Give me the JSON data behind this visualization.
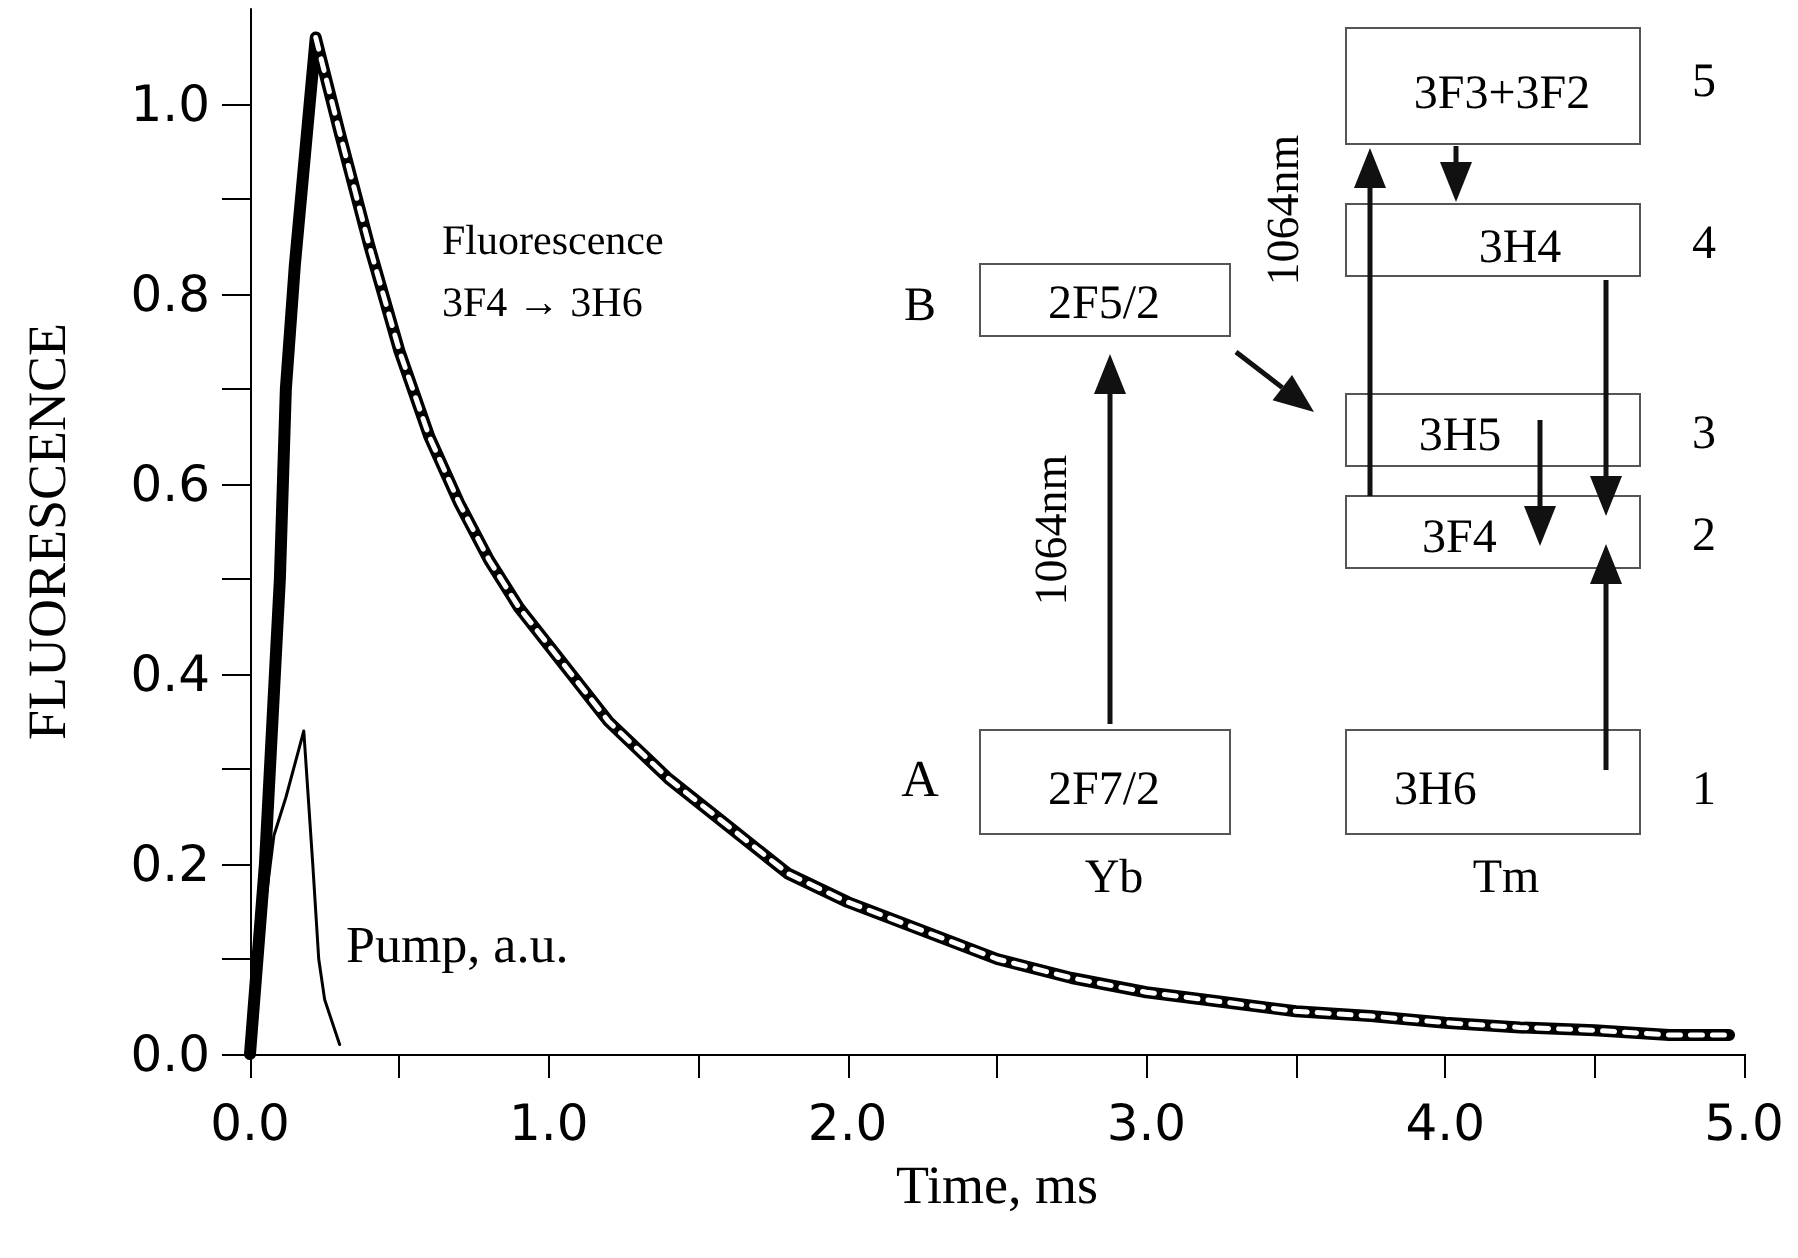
{
  "chart_data": {
    "type": "line",
    "xlabel": "Time, ms",
    "ylabel": "FLUORESCENCE",
    "xlim": [
      0,
      5
    ],
    "ylim": [
      0,
      1.1
    ],
    "xticks": [
      {
        "value": 0,
        "label": "0.0"
      },
      {
        "value": 0.5,
        "label": null
      },
      {
        "value": 1,
        "label": "1.0"
      },
      {
        "value": 1.5,
        "label": null
      },
      {
        "value": 2,
        "label": "2.0"
      },
      {
        "value": 2.5,
        "label": null
      },
      {
        "value": 3,
        "label": "3.0"
      },
      {
        "value": 3.5,
        "label": null
      },
      {
        "value": 4,
        "label": "4.0"
      },
      {
        "value": 4.5,
        "label": null
      },
      {
        "value": 5,
        "label": "5.0"
      }
    ],
    "yticks": [
      {
        "value": 0,
        "label": "0.0"
      },
      {
        "value": 0.1,
        "label": null
      },
      0.2,
      {
        "value": 0.3,
        "label": null
      },
      0.4,
      {
        "value": 0.5,
        "label": null
      },
      0.6,
      {
        "value": 0.7,
        "label": null
      },
      0.8,
      {
        "value": 0.9,
        "label": null
      },
      {
        "value": 1,
        "label": "1.0"
      }
    ],
    "grid": false,
    "marker": "none",
    "series": [
      {
        "color": "#000000",
        "line_style": "solid",
        "x": [
          0,
          0.05,
          0.1,
          0.12,
          0.15,
          0.22,
          0.3,
          0.4,
          0.5,
          0.6,
          0.7,
          0.8,
          0.9,
          1.0,
          1.2,
          1.4,
          1.6,
          1.8,
          2.0,
          2.25,
          2.5,
          2.75,
          3.0,
          3.25,
          3.5,
          3.75,
          4.0,
          4.25,
          4.5,
          4.75,
          4.95
        ],
        "values": [
          0,
          0.2,
          0.5,
          0.7,
          0.83,
          1.07,
          0.97,
          0.85,
          0.74,
          0.65,
          0.58,
          0.52,
          0.47,
          0.43,
          0.35,
          0.29,
          0.24,
          0.19,
          0.16,
          0.13,
          0.1,
          0.08,
          0.065,
          0.055,
          0.045,
          0.04,
          0.033,
          0.028,
          0.025,
          0.02,
          0.02
        ]
      },
      {
        "color": "#ffffff",
        "line_style": "dashed",
        "x": [
          0.22,
          0.3,
          0.4,
          0.5,
          0.6,
          0.7,
          0.8,
          0.9,
          1.0,
          1.2,
          1.4,
          1.6,
          1.8,
          2.0,
          2.25,
          2.5,
          2.75,
          3.0,
          3.25,
          3.5,
          3.75,
          4.0,
          4.25,
          4.5,
          4.75,
          4.95
        ],
        "values": [
          1.07,
          0.97,
          0.85,
          0.74,
          0.65,
          0.58,
          0.52,
          0.47,
          0.43,
          0.35,
          0.29,
          0.24,
          0.19,
          0.16,
          0.13,
          0.1,
          0.08,
          0.065,
          0.055,
          0.045,
          0.04,
          0.033,
          0.028,
          0.025,
          0.02,
          0.02
        ]
      },
      {
        "color": "#000000",
        "line_style": "solid",
        "x": [
          0,
          0.04,
          0.08,
          0.12,
          0.18,
          0.21,
          0.23,
          0.25,
          0.3
        ],
        "values": [
          0,
          0.13,
          0.23,
          0.27,
          0.34,
          0.2,
          0.1,
          0.057,
          0.01
        ]
      }
    ],
    "annotations": [
      "Fluorescence",
      "3F4 → 3H6",
      "Pump, a.u.",
      "B",
      "2F5/2",
      "A",
      "2F7/2",
      "Yb",
      "1064nm",
      "3F3+3F2",
      "3H4",
      "3H5",
      "3F4",
      "3H6",
      "Tm",
      "1064nm",
      "5",
      "4",
      "3",
      "2",
      "1"
    ]
  }
}
